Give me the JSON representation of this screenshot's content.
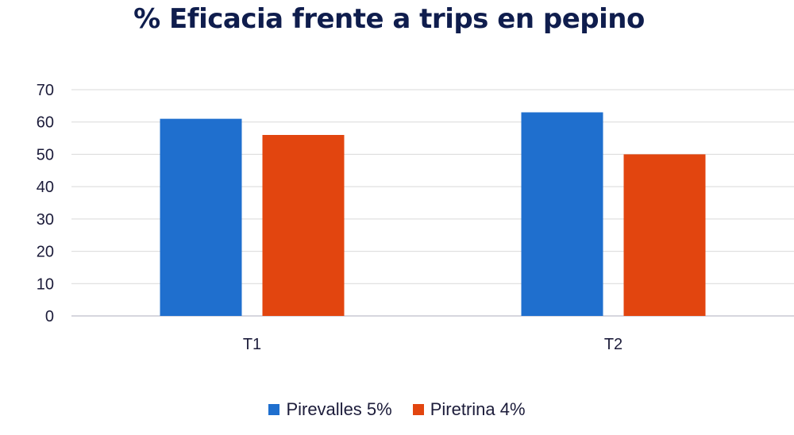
{
  "chart_data": {
    "type": "bar",
    "title": "% Eficacia frente a trips en pepino",
    "xlabel": "",
    "ylabel": "",
    "categories": [
      "T1",
      "T2"
    ],
    "series": [
      {
        "name": "Pirevalles 5%",
        "values": [
          61,
          63
        ],
        "color": "#1f6fce"
      },
      {
        "name": "Piretrina 4%",
        "values": [
          56,
          50
        ],
        "color": "#e2450f"
      }
    ],
    "ylim": [
      0,
      70
    ],
    "yticks": [
      0,
      10,
      20,
      30,
      40,
      50,
      60,
      70
    ],
    "grid": true,
    "legend_position": "bottom"
  }
}
